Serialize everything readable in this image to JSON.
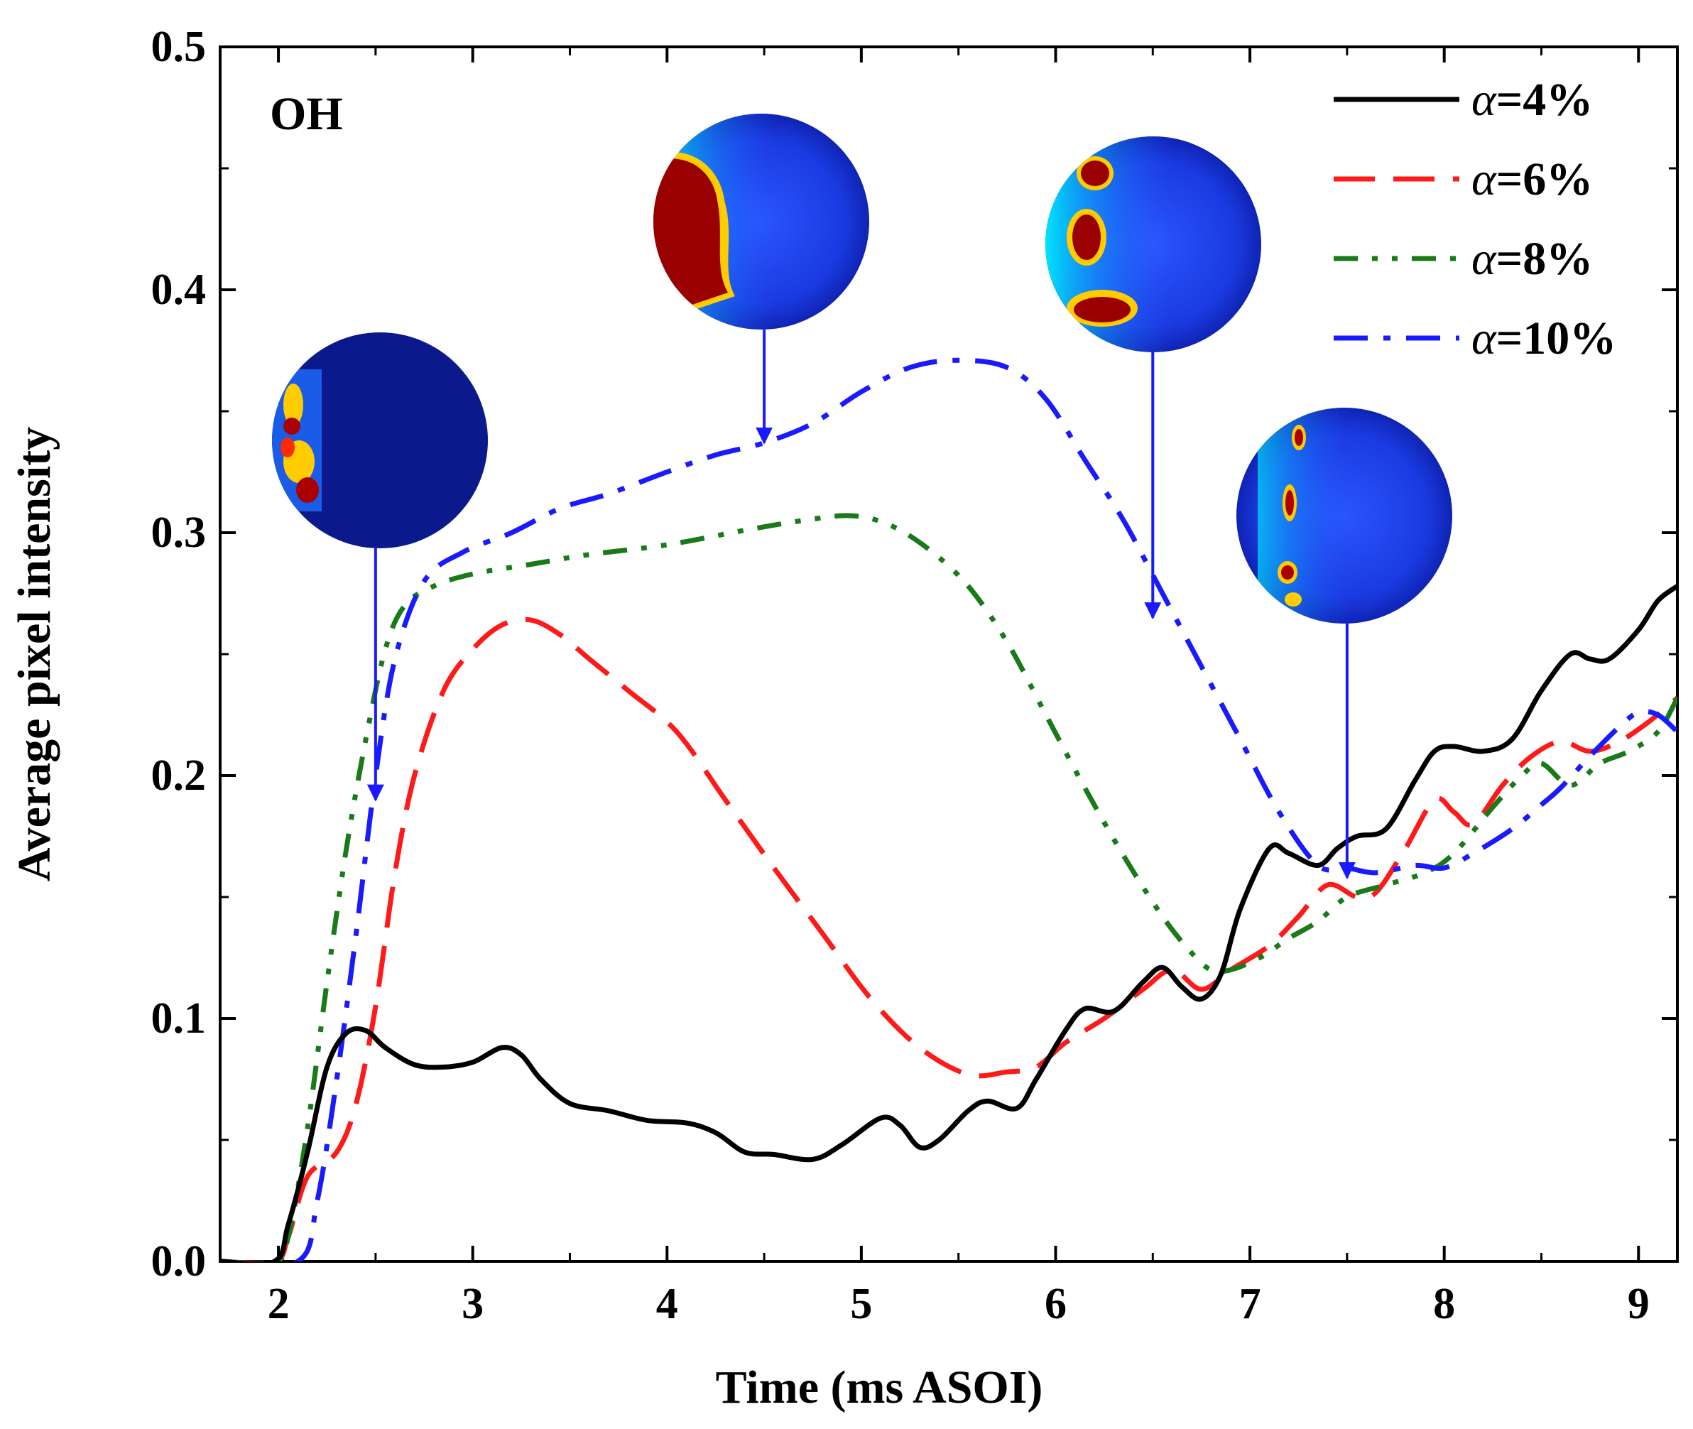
{
  "chart_data": {
    "type": "line",
    "panel_label": "OH",
    "xlabel": "Time (ms ASOI)",
    "ylabel": "Average pixel intensity",
    "xlim": [
      1.7,
      9.2
    ],
    "ylim": [
      0.0,
      0.5
    ],
    "x_ticks": [
      2,
      3,
      4,
      5,
      6,
      7,
      8,
      9
    ],
    "x_tick_labels": [
      "2",
      "3",
      "4",
      "5",
      "6",
      "7",
      "8",
      "9"
    ],
    "y_ticks": [
      0.0,
      0.1,
      0.2,
      0.3,
      0.4,
      0.5
    ],
    "y_tick_labels": [
      "0.0",
      "0.1",
      "0.2",
      "0.3",
      "0.4",
      "0.5"
    ],
    "legend_position": "top-right",
    "series": [
      {
        "name": "α=4%",
        "symbol": "α",
        "value_label": "=4%",
        "color": "#000000",
        "dash": "solid",
        "points": [
          [
            1.7,
            0.0
          ],
          [
            1.98,
            0.0
          ],
          [
            2.05,
            0.015
          ],
          [
            2.15,
            0.045
          ],
          [
            2.25,
            0.08
          ],
          [
            2.35,
            0.094
          ],
          [
            2.45,
            0.095
          ],
          [
            2.55,
            0.088
          ],
          [
            2.7,
            0.081
          ],
          [
            2.85,
            0.08
          ],
          [
            3.0,
            0.082
          ],
          [
            3.15,
            0.088
          ],
          [
            3.25,
            0.085
          ],
          [
            3.35,
            0.075
          ],
          [
            3.5,
            0.065
          ],
          [
            3.7,
            0.062
          ],
          [
            3.9,
            0.058
          ],
          [
            4.1,
            0.057
          ],
          [
            4.25,
            0.053
          ],
          [
            4.4,
            0.045
          ],
          [
            4.55,
            0.044
          ],
          [
            4.75,
            0.042
          ],
          [
            4.9,
            0.048
          ],
          [
            5.1,
            0.059
          ],
          [
            5.2,
            0.056
          ],
          [
            5.3,
            0.047
          ],
          [
            5.4,
            0.05
          ],
          [
            5.55,
            0.062
          ],
          [
            5.65,
            0.066
          ],
          [
            5.8,
            0.063
          ],
          [
            5.9,
            0.075
          ],
          [
            6.05,
            0.095
          ],
          [
            6.15,
            0.104
          ],
          [
            6.3,
            0.103
          ],
          [
            6.45,
            0.115
          ],
          [
            6.55,
            0.121
          ],
          [
            6.65,
            0.113
          ],
          [
            6.75,
            0.108
          ],
          [
            6.85,
            0.118
          ],
          [
            6.95,
            0.145
          ],
          [
            7.1,
            0.17
          ],
          [
            7.2,
            0.168
          ],
          [
            7.35,
            0.163
          ],
          [
            7.45,
            0.17
          ],
          [
            7.55,
            0.175
          ],
          [
            7.7,
            0.178
          ],
          [
            7.85,
            0.198
          ],
          [
            7.95,
            0.21
          ],
          [
            8.05,
            0.212
          ],
          [
            8.2,
            0.21
          ],
          [
            8.35,
            0.215
          ],
          [
            8.5,
            0.235
          ],
          [
            8.65,
            0.25
          ],
          [
            8.75,
            0.248
          ],
          [
            8.85,
            0.248
          ],
          [
            9.0,
            0.26
          ],
          [
            9.1,
            0.272
          ],
          [
            9.2,
            0.278
          ]
        ]
      },
      {
        "name": "α=6%",
        "symbol": "α",
        "value_label": "=6%",
        "color": "#ff1a1a",
        "dash": "dashed",
        "points": [
          [
            1.7,
            0.0
          ],
          [
            1.98,
            0.0
          ],
          [
            2.05,
            0.01
          ],
          [
            2.15,
            0.035
          ],
          [
            2.3,
            0.045
          ],
          [
            2.4,
            0.065
          ],
          [
            2.5,
            0.105
          ],
          [
            2.6,
            0.16
          ],
          [
            2.7,
            0.2
          ],
          [
            2.85,
            0.235
          ],
          [
            3.0,
            0.252
          ],
          [
            3.15,
            0.262
          ],
          [
            3.3,
            0.264
          ],
          [
            3.45,
            0.258
          ],
          [
            3.6,
            0.248
          ],
          [
            3.8,
            0.235
          ],
          [
            4.05,
            0.218
          ],
          [
            4.3,
            0.19
          ],
          [
            4.55,
            0.162
          ],
          [
            4.8,
            0.135
          ],
          [
            5.05,
            0.108
          ],
          [
            5.3,
            0.088
          ],
          [
            5.55,
            0.077
          ],
          [
            5.75,
            0.078
          ],
          [
            5.9,
            0.08
          ],
          [
            6.05,
            0.09
          ],
          [
            6.25,
            0.1
          ],
          [
            6.45,
            0.112
          ],
          [
            6.6,
            0.12
          ],
          [
            6.75,
            0.112
          ],
          [
            6.9,
            0.12
          ],
          [
            7.1,
            0.13
          ],
          [
            7.25,
            0.142
          ],
          [
            7.4,
            0.155
          ],
          [
            7.55,
            0.15
          ],
          [
            7.65,
            0.152
          ],
          [
            7.8,
            0.17
          ],
          [
            7.95,
            0.19
          ],
          [
            8.05,
            0.185
          ],
          [
            8.15,
            0.18
          ],
          [
            8.3,
            0.196
          ],
          [
            8.45,
            0.208
          ],
          [
            8.6,
            0.214
          ],
          [
            8.75,
            0.21
          ],
          [
            8.9,
            0.214
          ],
          [
            9.05,
            0.222
          ],
          [
            9.2,
            0.232
          ]
        ]
      },
      {
        "name": "α=8%",
        "symbol": "α",
        "value_label": "=8%",
        "color": "#1a7a1a",
        "dash": "dash-dot-dot",
        "points": [
          [
            1.7,
            0.0
          ],
          [
            1.98,
            0.0
          ],
          [
            2.05,
            0.01
          ],
          [
            2.15,
            0.055
          ],
          [
            2.25,
            0.115
          ],
          [
            2.35,
            0.17
          ],
          [
            2.45,
            0.215
          ],
          [
            2.55,
            0.252
          ],
          [
            2.65,
            0.27
          ],
          [
            2.8,
            0.278
          ],
          [
            3.0,
            0.283
          ],
          [
            3.3,
            0.287
          ],
          [
            3.6,
            0.291
          ],
          [
            4.0,
            0.295
          ],
          [
            4.4,
            0.301
          ],
          [
            4.7,
            0.305
          ],
          [
            4.95,
            0.307
          ],
          [
            5.15,
            0.303
          ],
          [
            5.35,
            0.293
          ],
          [
            5.55,
            0.278
          ],
          [
            5.75,
            0.255
          ],
          [
            5.95,
            0.225
          ],
          [
            6.15,
            0.195
          ],
          [
            6.35,
            0.167
          ],
          [
            6.55,
            0.142
          ],
          [
            6.7,
            0.127
          ],
          [
            6.8,
            0.12
          ],
          [
            6.9,
            0.12
          ],
          [
            7.05,
            0.125
          ],
          [
            7.2,
            0.133
          ],
          [
            7.35,
            0.14
          ],
          [
            7.5,
            0.15
          ],
          [
            7.7,
            0.155
          ],
          [
            7.9,
            0.16
          ],
          [
            8.05,
            0.168
          ],
          [
            8.25,
            0.187
          ],
          [
            8.4,
            0.2
          ],
          [
            8.5,
            0.205
          ],
          [
            8.65,
            0.196
          ],
          [
            8.8,
            0.205
          ],
          [
            8.95,
            0.21
          ],
          [
            9.1,
            0.218
          ],
          [
            9.2,
            0.232
          ]
        ]
      },
      {
        "name": "α=10%",
        "symbol": "α",
        "value_label": "=10%",
        "color": "#1a1aff",
        "dash": "dash-dot",
        "points": [
          [
            1.7,
            0.0
          ],
          [
            2.1,
            0.0
          ],
          [
            2.2,
            0.025
          ],
          [
            2.3,
            0.075
          ],
          [
            2.4,
            0.135
          ],
          [
            2.5,
            0.2
          ],
          [
            2.6,
            0.248
          ],
          [
            2.75,
            0.28
          ],
          [
            2.95,
            0.292
          ],
          [
            3.2,
            0.3
          ],
          [
            3.45,
            0.31
          ],
          [
            3.7,
            0.316
          ],
          [
            4.0,
            0.325
          ],
          [
            4.25,
            0.332
          ],
          [
            4.5,
            0.337
          ],
          [
            4.75,
            0.345
          ],
          [
            5.0,
            0.358
          ],
          [
            5.25,
            0.368
          ],
          [
            5.5,
            0.371
          ],
          [
            5.75,
            0.368
          ],
          [
            5.95,
            0.355
          ],
          [
            6.15,
            0.33
          ],
          [
            6.35,
            0.305
          ],
          [
            6.55,
            0.275
          ],
          [
            6.75,
            0.245
          ],
          [
            6.95,
            0.215
          ],
          [
            7.15,
            0.185
          ],
          [
            7.35,
            0.163
          ],
          [
            7.5,
            0.162
          ],
          [
            7.65,
            0.16
          ],
          [
            7.85,
            0.163
          ],
          [
            8.0,
            0.162
          ],
          [
            8.15,
            0.168
          ],
          [
            8.35,
            0.178
          ],
          [
            8.5,
            0.188
          ],
          [
            8.6,
            0.195
          ],
          [
            8.75,
            0.208
          ],
          [
            8.9,
            0.22
          ],
          [
            9.0,
            0.226
          ],
          [
            9.1,
            0.225
          ],
          [
            9.2,
            0.218
          ]
        ]
      }
    ],
    "insets": [
      {
        "name": "oh-image-2.5ms",
        "time": 2.5,
        "arrow_tip": 0.19
      },
      {
        "name": "oh-image-4.5ms",
        "time": 4.5,
        "arrow_tip": 0.337
      },
      {
        "name": "oh-image-6.5ms",
        "time": 6.5,
        "arrow_tip": 0.265
      },
      {
        "name": "oh-image-7.5ms",
        "time": 7.5,
        "arrow_tip": 0.158
      }
    ]
  }
}
